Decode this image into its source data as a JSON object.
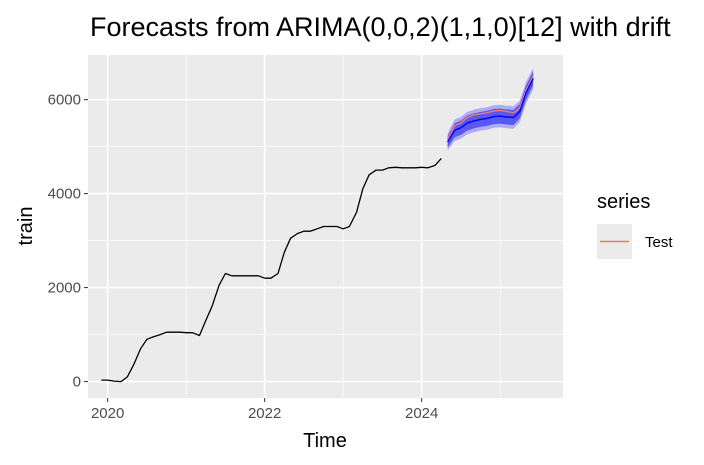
{
  "chart_data": {
    "type": "line",
    "title": "Forecasts from ARIMA(0,0,2)(1,1,0)[12] with drift",
    "xlabel": "Time",
    "ylabel": "train",
    "xlim": [
      2019.75,
      2025.8
    ],
    "ylim": [
      -350,
      6950
    ],
    "x_ticks": [
      2020,
      2022,
      2024
    ],
    "x_tick_labels": [
      "2020",
      "2022",
      "2024"
    ],
    "y_ticks": [
      0,
      2000,
      4000,
      6000
    ],
    "y_tick_labels": [
      "0",
      "2000",
      "4000",
      "6000"
    ],
    "grid": true,
    "legend": {
      "title": "series",
      "position": "right",
      "entries": [
        {
          "label": "Test",
          "color": "#F8766D"
        }
      ]
    },
    "colors": {
      "panel": "#EBEBEB",
      "grid": "#FFFFFF",
      "history": "#000000",
      "forecast": "#0000FF",
      "ci80": "#5959F0",
      "ci95": "#ADADF7",
      "test": "#F8766D"
    },
    "series": [
      {
        "role": "history",
        "x": [
          2019.92,
          2020.0,
          2020.08,
          2020.17,
          2020.25,
          2020.33,
          2020.42,
          2020.5,
          2020.58,
          2020.67,
          2020.75,
          2020.83,
          2020.92,
          2021.0,
          2021.08,
          2021.17,
          2021.25,
          2021.33,
          2021.42,
          2021.5,
          2021.58,
          2021.67,
          2021.75,
          2021.83,
          2021.92,
          2022.0,
          2022.08,
          2022.17,
          2022.25,
          2022.33,
          2022.42,
          2022.5,
          2022.58,
          2022.67,
          2022.75,
          2022.83,
          2022.92,
          2023.0,
          2023.08,
          2023.17,
          2023.25,
          2023.33,
          2023.42,
          2023.5,
          2023.58,
          2023.67,
          2023.75,
          2023.83,
          2023.92,
          2024.0,
          2024.08,
          2024.17,
          2024.25
        ],
        "y": [
          30,
          30,
          10,
          0,
          100,
          350,
          700,
          900,
          950,
          1000,
          1050,
          1050,
          1050,
          1040,
          1040,
          980,
          1300,
          1600,
          2050,
          2300,
          2250,
          2250,
          2250,
          2250,
          2250,
          2200,
          2200,
          2300,
          2750,
          3050,
          3150,
          3200,
          3200,
          3250,
          3300,
          3300,
          3300,
          3250,
          3300,
          3600,
          4100,
          4400,
          4500,
          4500,
          4550,
          4560,
          4550,
          4550,
          4550,
          4560,
          4550,
          4600,
          4750
        ]
      },
      {
        "role": "forecast",
        "x": [
          2024.33,
          2024.42,
          2024.5,
          2024.58,
          2024.67,
          2024.75,
          2024.83,
          2024.92,
          2025.0,
          2025.08,
          2025.17,
          2025.25,
          2025.33,
          2025.42
        ],
        "y": [
          5100,
          5350,
          5400,
          5500,
          5550,
          5580,
          5600,
          5640,
          5650,
          5630,
          5620,
          5750,
          6150,
          6450
        ],
        "lo80": [
          4980,
          5200,
          5250,
          5340,
          5390,
          5420,
          5440,
          5480,
          5490,
          5470,
          5460,
          5600,
          6000,
          6300
        ],
        "hi80": [
          5220,
          5500,
          5550,
          5660,
          5710,
          5740,
          5760,
          5800,
          5810,
          5790,
          5780,
          5900,
          6300,
          6600
        ],
        "lo95": [
          4920,
          5120,
          5170,
          5260,
          5310,
          5340,
          5360,
          5400,
          5410,
          5390,
          5380,
          5520,
          5920,
          6220
        ],
        "hi95": [
          5280,
          5580,
          5630,
          5740,
          5790,
          5820,
          5840,
          5880,
          5890,
          5870,
          5860,
          5980,
          6380,
          6680
        ]
      },
      {
        "name": "Test",
        "role": "test",
        "x": [
          2024.33,
          2024.42,
          2024.5,
          2024.58,
          2024.67,
          2024.75,
          2024.83,
          2024.92,
          2025.0,
          2025.08,
          2025.17,
          2025.25,
          2025.33,
          2025.42
        ],
        "y": [
          5150,
          5450,
          5500,
          5620,
          5680,
          5700,
          5720,
          5760,
          5770,
          5750,
          5720,
          5820,
          6200,
          6500
        ]
      }
    ]
  }
}
